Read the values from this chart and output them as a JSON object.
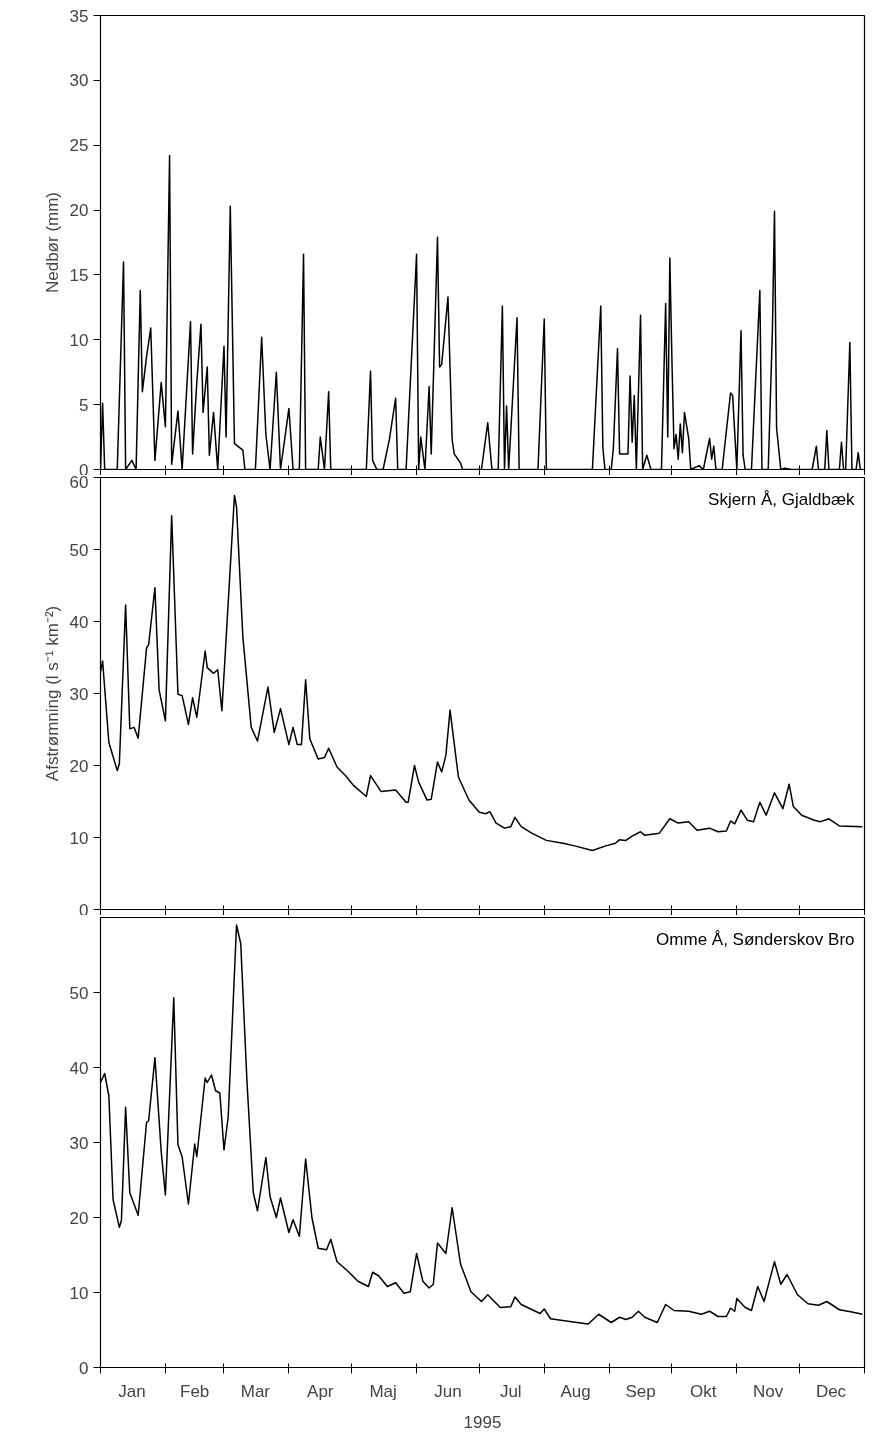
{
  "chart_data": [
    {
      "type": "line",
      "ylabel": "Nedbør (mm)",
      "color": "#000000",
      "grid": false,
      "tick_labels": "y",
      "line_style": "solid",
      "xlim": [
        "1995-01-01",
        "1996-01-01"
      ],
      "ylim": [
        0,
        35
      ],
      "yticks": [
        0,
        5,
        10,
        15,
        20,
        25,
        30,
        35
      ],
      "xticks": [
        {
          "value": "1995-01-01",
          "label": null
        },
        {
          "value": "1995-02-01",
          "label": null
        },
        {
          "value": "1995-03-01",
          "label": null
        },
        {
          "value": "1995-04-01",
          "label": null
        },
        {
          "value": "1995-05-01",
          "label": null
        },
        {
          "value": "1995-06-01",
          "label": null
        },
        {
          "value": "1995-07-01",
          "label": null
        },
        {
          "value": "1995-08-01",
          "label": null
        },
        {
          "value": "1995-09-01",
          "label": null
        },
        {
          "value": "1995-10-01",
          "label": null
        },
        {
          "value": "1995-11-01",
          "label": null
        },
        {
          "value": "1995-12-01",
          "label": null
        },
        {
          "value": "1996-01-01",
          "label": null
        }
      ],
      "x": [
        "1995-01-01",
        "1995-01-02",
        "1995-01-03",
        "1995-01-09",
        "1995-01-12",
        "1995-01-13",
        "1995-01-16",
        "1995-01-18",
        "1995-01-20",
        "1995-01-21",
        "1995-01-23",
        "1995-01-25",
        "1995-01-27",
        "1995-01-30",
        "1995-02-01",
        "1995-02-03",
        "1995-02-04",
        "1995-02-07",
        "1995-02-09",
        "1995-02-13",
        "1995-02-14",
        "1995-02-16",
        "1995-02-18",
        "1995-02-19",
        "1995-02-21",
        "1995-02-22",
        "1995-02-24",
        "1995-02-26",
        "1995-03-01",
        "1995-03-02",
        "1995-03-04",
        "1995-03-06",
        "1995-03-10",
        "1995-03-11",
        "1995-03-16",
        "1995-03-19",
        "1995-03-21",
        "1995-03-23",
        "1995-03-26",
        "1995-03-28",
        "1995-04-01",
        "1995-04-03",
        "1995-04-06",
        "1995-04-08",
        "1995-04-09",
        "1995-04-15",
        "1995-04-16",
        "1995-04-18",
        "1995-04-20",
        "1995-04-21",
        "1995-05-08",
        "1995-05-10",
        "1995-05-11",
        "1995-05-13",
        "1995-05-16",
        "1995-05-19",
        "1995-05-22",
        "1995-05-23",
        "1995-05-27",
        "1995-06-01",
        "1995-06-02",
        "1995-06-03",
        "1995-06-05",
        "1995-06-07",
        "1995-06-08",
        "1995-06-11",
        "1995-06-12",
        "1995-06-13",
        "1995-06-16",
        "1995-06-18",
        "1995-06-19",
        "1995-06-22",
        "1995-06-23",
        "1995-07-02",
        "1995-07-05",
        "1995-07-07",
        "1995-07-10",
        "1995-07-12",
        "1995-07-13",
        "1995-07-14",
        "1995-07-15",
        "1995-07-19",
        "1995-07-20",
        "1995-07-29",
        "1995-08-01",
        "1995-08-02",
        "1995-08-24",
        "1995-08-28",
        "1995-08-29",
        "1995-08-30",
        "1995-09-02",
        "1995-09-03",
        "1995-09-05",
        "1995-09-06",
        "1995-09-10",
        "1995-09-11",
        "1995-09-12",
        "1995-09-13",
        "1995-09-14",
        "1995-09-16",
        "1995-09-17",
        "1995-09-19",
        "1995-09-21",
        "1995-09-26",
        "1995-09-28",
        "1995-09-29",
        "1995-09-30",
        "1995-10-01",
        "1995-10-02",
        "1995-10-03",
        "1995-10-04",
        "1995-10-05",
        "1995-10-06",
        "1995-10-07",
        "1995-10-09",
        "1995-10-10",
        "1995-10-14",
        "1995-10-16",
        "1995-10-19",
        "1995-10-20",
        "1995-10-21",
        "1995-10-22",
        "1995-10-25",
        "1995-10-29",
        "1995-10-30",
        "1995-11-01",
        "1995-11-03",
        "1995-11-04",
        "1995-11-05",
        "1995-11-08",
        "1995-11-12",
        "1995-11-13",
        "1995-11-16",
        "1995-11-18",
        "1995-11-19",
        "1995-11-20",
        "1995-11-22",
        "1995-11-24",
        "1995-11-27",
        "1995-12-07",
        "1995-12-09",
        "1995-12-10",
        "1995-12-13",
        "1995-12-14",
        "1995-12-15",
        "1995-12-20",
        "1995-12-21",
        "1995-12-22",
        "1995-12-23",
        "1995-12-25",
        "1995-12-26",
        "1995-12-28",
        "1995-12-29",
        "1995-12-30",
        "1995-12-31"
      ],
      "values": [
        0,
        5.1,
        0,
        0,
        16,
        0,
        0.7,
        0,
        13.8,
        6,
        8.7,
        10.9,
        0.7,
        6.7,
        3.3,
        24.2,
        0.4,
        4.5,
        0,
        11.4,
        1.2,
        6.7,
        11.2,
        4.4,
        7.9,
        1.1,
        4.4,
        0,
        9.5,
        2.5,
        20.3,
        2,
        1.5,
        0,
        0,
        10.2,
        2.7,
        0,
        7.5,
        0,
        4.7,
        0,
        0,
        16.6,
        0,
        0,
        2.5,
        0,
        6,
        0,
        0,
        7.6,
        0.7,
        0,
        0,
        2.3,
        5.5,
        0,
        0,
        16.6,
        0,
        2.5,
        0,
        6.4,
        1.2,
        17.9,
        7.9,
        8.1,
        13.3,
        2.3,
        1.2,
        0.5,
        0,
        0,
        3.6,
        0,
        0,
        12.6,
        0,
        4.9,
        0,
        11.7,
        0,
        0,
        11.6,
        0,
        0,
        12.6,
        1.7,
        0,
        0,
        1.6,
        9.3,
        1.2,
        1.2,
        7.2,
        2.1,
        5.7,
        0,
        11.9,
        0,
        1.1,
        0,
        0,
        12.8,
        2.5,
        16.3,
        8.4,
        1.6,
        2.7,
        0.8,
        3.5,
        1.3,
        4.4,
        2.4,
        0,
        0.3,
        0,
        2.4,
        0.8,
        1.8,
        0,
        0,
        5.9,
        5.7,
        0,
        10.7,
        1.1,
        0,
        0,
        13.8,
        0,
        0,
        10.7,
        19.9,
        3.2,
        0,
        0.1,
        0,
        0,
        1.8,
        0,
        0,
        3,
        0,
        0,
        2.1,
        0,
        0,
        9.8,
        0,
        0,
        1.3,
        0,
        0
      ]
    },
    {
      "type": "line",
      "ylabel": "Afstrømning (l s⁻¹ km⁻²)",
      "grid": false,
      "tick_labels": "y",
      "line_style": "solid",
      "xlim": [
        "1995-01-01",
        "1996-01-01"
      ],
      "ylim": [
        0,
        60
      ],
      "yticks": [
        0,
        10,
        20,
        30,
        40,
        50,
        60
      ],
      "xticks": [
        {
          "value": "1995-01-01",
          "label": null
        },
        {
          "value": "1995-02-01",
          "label": null
        },
        {
          "value": "1995-03-01",
          "label": null
        },
        {
          "value": "1995-04-01",
          "label": null
        },
        {
          "value": "1995-05-01",
          "label": null
        },
        {
          "value": "1995-06-01",
          "label": null
        },
        {
          "value": "1995-07-01",
          "label": null
        },
        {
          "value": "1995-08-01",
          "label": null
        },
        {
          "value": "1995-09-01",
          "label": null
        },
        {
          "value": "1995-10-01",
          "label": null
        },
        {
          "value": "1995-11-01",
          "label": null
        },
        {
          "value": "1995-12-01",
          "label": null
        },
        {
          "value": "1996-01-01",
          "label": null
        }
      ],
      "x": [
        "1995-01-01",
        "1995-01-02",
        "1995-01-05",
        "1995-01-09",
        "1995-01-10",
        "1995-01-13",
        "1995-01-15",
        "1995-01-17",
        "1995-01-19",
        "1995-01-23",
        "1995-01-24",
        "1995-01-27",
        "1995-01-29",
        "1995-02-01",
        "1995-02-04",
        "1995-02-07",
        "1995-02-09",
        "1995-02-12",
        "1995-02-14",
        "1995-02-16",
        "1995-02-20",
        "1995-02-21",
        "1995-02-24",
        "1995-02-26",
        "1995-02-28",
        "1995-03-06",
        "1995-03-07",
        "1995-03-10",
        "1995-03-14",
        "1995-03-17",
        "1995-03-22",
        "1995-03-25",
        "1995-03-28",
        "1995-04-01",
        "1995-04-03",
        "1995-04-05",
        "1995-04-07",
        "1995-04-09",
        "1995-04-11",
        "1995-04-15",
        "1995-04-18",
        "1995-04-20",
        "1995-04-24",
        "1995-04-28",
        "1995-05-02",
        "1995-05-08",
        "1995-05-10",
        "1995-05-15",
        "1995-05-22",
        "1995-05-27",
        "1995-05-28",
        "1995-05-31",
        "1995-06-02",
        "1995-06-06",
        "1995-06-08",
        "1995-06-11",
        "1995-06-13",
        "1995-06-15",
        "1995-06-17",
        "1995-06-19",
        "1995-06-21",
        "1995-06-26",
        "1995-07-01",
        "1995-07-04",
        "1995-07-06",
        "1995-07-09",
        "1995-07-13",
        "1995-07-16",
        "1995-07-18",
        "1995-07-21",
        "1995-07-26",
        "1995-08-02",
        "1995-08-10",
        "1995-08-16",
        "1995-08-24",
        "1995-08-30",
        "1995-09-04",
        "1995-09-06",
        "1995-09-09",
        "1995-09-12",
        "1995-09-16",
        "1995-09-18",
        "1995-09-25",
        "1995-09-30",
        "1995-10-04",
        "1995-10-09",
        "1995-10-13",
        "1995-10-19",
        "1995-10-23",
        "1995-10-27",
        "1995-10-29",
        "1995-10-31",
        "1995-11-03",
        "1995-11-06",
        "1995-11-09",
        "1995-11-12",
        "1995-11-15",
        "1995-11-19",
        "1995-11-23",
        "1995-11-26",
        "1995-11-28",
        "1995-12-02",
        "1995-12-08",
        "1995-12-11",
        "1995-12-15",
        "1995-12-20",
        "1995-12-31"
      ],
      "series": [
        {
          "name": "Skjern Å, Gjaldbæk",
          "color": "#000000",
          "values": [
            33,
            34.5,
            23.2,
            19.3,
            20.2,
            42.3,
            25.1,
            25.3,
            23.8,
            36.3,
            36.8,
            44.7,
            30.5,
            26.2,
            54.7,
            29.9,
            29.7,
            25.7,
            29.4,
            26.7,
            35.9,
            33.6,
            32.8,
            33.3,
            27.6,
            57.5,
            55.9,
            37.9,
            25.3,
            23.4,
            30.9,
            24.6,
            27.9,
            22.9,
            25.3,
            22.9,
            22.9,
            31.9,
            23.7,
            20.9,
            21.1,
            22.4,
            19.8,
            18.6,
            17.2,
            15.7,
            18.6,
            16.4,
            16.6,
            14.9,
            14.9,
            20,
            17.7,
            15.2,
            15.3,
            20.5,
            19.1,
            21.4,
            27.7,
            23,
            18.4,
            15.2,
            13.5,
            13.3,
            13.6,
            12,
            11.3,
            11.5,
            12.8,
            11.5,
            10.6,
            9.6,
            9.2,
            8.8,
            8.2,
            8.8,
            9.2,
            9.7,
            9.6,
            10.2,
            10.8,
            10.3,
            10.6,
            12.6,
            12,
            12.2,
            11,
            11.3,
            10.8,
            10.9,
            12.3,
            11.9,
            13.8,
            12.4,
            12.2,
            14.9,
            13.1,
            16.2,
            14,
            17.4,
            14.3,
            13.1,
            12.4,
            12.2,
            12.6,
            11.6,
            11.5
          ]
        }
      ]
    },
    {
      "type": "line",
      "xlabel": "1995",
      "grid": false,
      "line_style": "solid",
      "xlim": [
        "1995-01-01",
        "1996-01-01"
      ],
      "ylim": [
        0,
        60
      ],
      "yticks": [
        0,
        10,
        20,
        30,
        40,
        50
      ],
      "xticks": [
        {
          "value": "1995-01-01",
          "label": null
        },
        {
          "value": "1995-02-01",
          "label": null
        },
        {
          "value": "1995-03-01",
          "label": null
        },
        {
          "value": "1995-04-01",
          "label": null
        },
        {
          "value": "1995-05-01",
          "label": null
        },
        {
          "value": "1995-06-01",
          "label": null
        },
        {
          "value": "1995-07-01",
          "label": null
        },
        {
          "value": "1995-08-01",
          "label": null
        },
        {
          "value": "1995-09-01",
          "label": null
        },
        {
          "value": "1995-10-01",
          "label": null
        },
        {
          "value": "1995-11-01",
          "label": null
        },
        {
          "value": "1995-12-01",
          "label": null
        },
        {
          "value": "1996-01-01",
          "label": null
        },
        {
          "value": "1995-01-16",
          "label": "Jan"
        },
        {
          "value": "1995-02-15",
          "label": "Feb"
        },
        {
          "value": "1995-03-16",
          "label": "Mar"
        },
        {
          "value": "1995-04-16",
          "label": "Apr"
        },
        {
          "value": "1995-05-16",
          "label": "Maj"
        },
        {
          "value": "1995-06-16",
          "label": "Jun"
        },
        {
          "value": "1995-07-16",
          "label": "Jul"
        },
        {
          "value": "1995-08-16",
          "label": "Aug"
        },
        {
          "value": "1995-09-16",
          "label": "Sep"
        },
        {
          "value": "1995-10-16",
          "label": "Okt"
        },
        {
          "value": "1995-11-16",
          "label": "Nov"
        },
        {
          "value": "1995-12-16",
          "label": "Dec"
        }
      ],
      "x": [
        "1995-01-01",
        "1995-01-03",
        "1995-01-05",
        "1995-01-07",
        "1995-01-10",
        "1995-01-11",
        "1995-01-13",
        "1995-01-15",
        "1995-01-19",
        "1995-01-23",
        "1995-01-24",
        "1995-01-27",
        "1995-01-30",
        "1995-02-01",
        "1995-02-05",
        "1995-02-07",
        "1995-02-09",
        "1995-02-12",
        "1995-02-15",
        "1995-02-16",
        "1995-02-20",
        "1995-02-21",
        "1995-02-23",
        "1995-02-25",
        "1995-02-27",
        "1995-03-01",
        "1995-03-03",
        "1995-03-07",
        "1995-03-09",
        "1995-03-12",
        "1995-03-15",
        "1995-03-17",
        "1995-03-21",
        "1995-03-23",
        "1995-03-26",
        "1995-03-28",
        "1995-04-01",
        "1995-04-03",
        "1995-04-06",
        "1995-04-09",
        "1995-04-12",
        "1995-04-15",
        "1995-04-19",
        "1995-04-21",
        "1995-04-24",
        "1995-04-29",
        "1995-05-04",
        "1995-05-09",
        "1995-05-11",
        "1995-05-14",
        "1995-05-18",
        "1995-05-22",
        "1995-05-26",
        "1995-05-29",
        "1995-06-01",
        "1995-06-04",
        "1995-06-07",
        "1995-06-09",
        "1995-06-11",
        "1995-06-15",
        "1995-06-18",
        "1995-06-22",
        "1995-06-27",
        "1995-07-02",
        "1995-07-05",
        "1995-07-11",
        "1995-07-16",
        "1995-07-18",
        "1995-07-21",
        "1995-07-30",
        "1995-08-01",
        "1995-08-04",
        "1995-08-14",
        "1995-08-22",
        "1995-08-27",
        "1995-09-02",
        "1995-09-06",
        "1995-09-09",
        "1995-09-12",
        "1995-09-15",
        "1995-09-18",
        "1995-09-24",
        "1995-09-28",
        "1995-10-02",
        "1995-10-09",
        "1995-10-15",
        "1995-10-19",
        "1995-10-23",
        "1995-10-27",
        "1995-10-29",
        "1995-10-31",
        "1995-11-01",
        "1995-11-05",
        "1995-11-08",
        "1995-11-11",
        "1995-11-14",
        "1995-11-19",
        "1995-11-22",
        "1995-11-25",
        "1995-11-30",
        "1995-12-05",
        "1995-12-10",
        "1995-12-14",
        "1995-12-20",
        "1995-12-26",
        "1995-12-31"
      ],
      "series": [
        {
          "name": "Omme Å, Sønderskov Bro",
          "color": "#000000",
          "values": [
            38,
            39.2,
            36.2,
            22.4,
            18.7,
            19.6,
            34.7,
            23.3,
            20.3,
            32.7,
            32.9,
            41.3,
            28.8,
            23,
            49.3,
            29.7,
            28.1,
            21.8,
            29.8,
            28.1,
            38.6,
            38,
            39,
            36.9,
            36.6,
            29,
            33.4,
            59,
            56.5,
            38,
            23.3,
            20.9,
            28,
            22.8,
            20,
            22.6,
            18,
            19.7,
            17.5,
            27.8,
            20,
            15.9,
            15.7,
            17.1,
            14.1,
            12.9,
            11.5,
            10.8,
            12.7,
            12.2,
            10.8,
            11.3,
            9.9,
            10.1,
            15.2,
            11.5,
            10.6,
            11.1,
            16.6,
            15.2,
            21.3,
            13.8,
            10.1,
            8.8,
            9.7,
            8,
            8.1,
            9.4,
            8.4,
            7.2,
            7.8,
            6.5,
            6.1,
            5.8,
            7.1,
            6,
            6.7,
            6.4,
            6.7,
            7.5,
            6.7,
            6,
            8.4,
            7.6,
            7.5,
            7.1,
            7.5,
            6.8,
            6.8,
            7.9,
            7.5,
            9.2,
            8,
            7.6,
            10.8,
            8.8,
            14.1,
            11.1,
            12.4,
            9.7,
            8.5,
            8.3,
            8.8,
            7.7,
            7.4,
            7.1
          ]
        }
      ]
    }
  ]
}
